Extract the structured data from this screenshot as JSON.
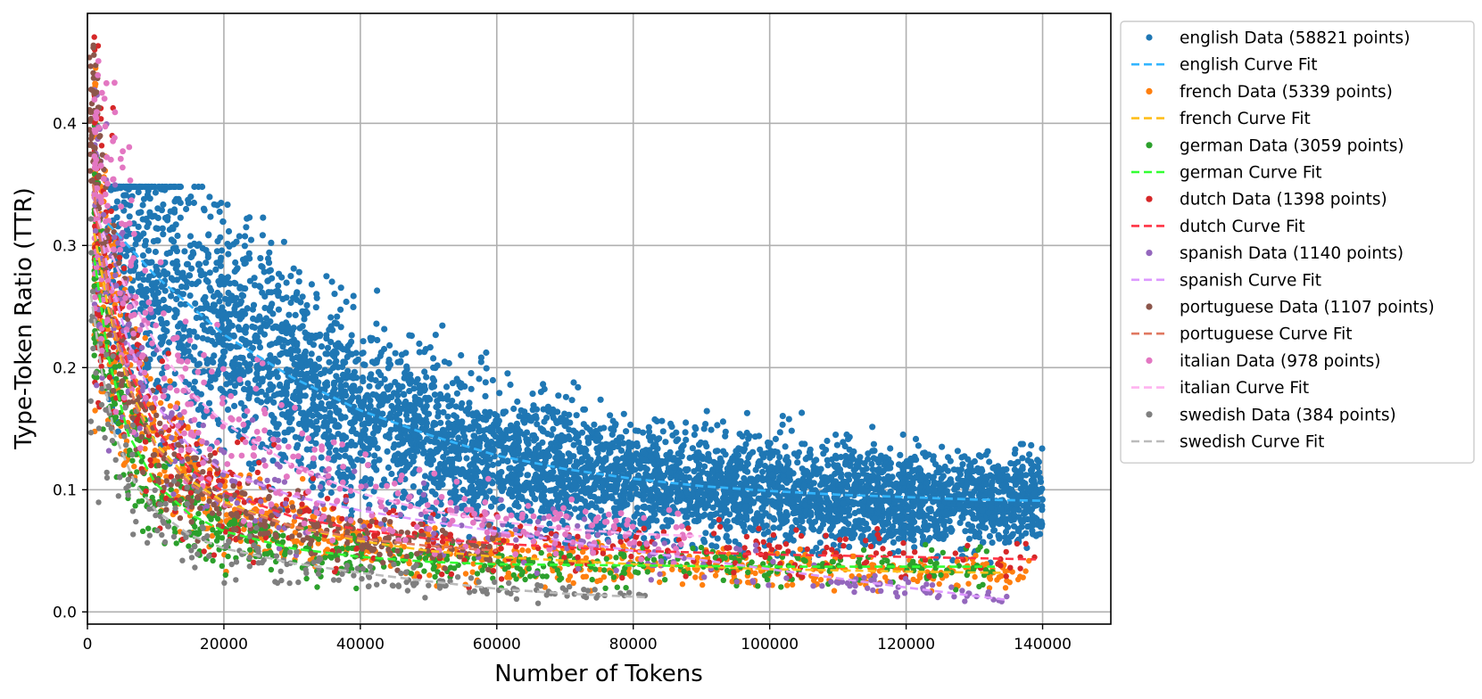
{
  "chart_data": {
    "type": "scatter",
    "title": "",
    "xlabel": "Number of Tokens",
    "ylabel": "Type-Token Ratio (TTR)",
    "xlim": [
      0,
      150000
    ],
    "ylim": [
      -0.01,
      0.49
    ],
    "x_ticks": [
      0,
      20000,
      40000,
      60000,
      80000,
      100000,
      120000,
      140000
    ],
    "y_ticks": [
      0.0,
      0.1,
      0.2,
      0.3,
      0.4
    ],
    "grid": true,
    "legend_position": "outside-right",
    "series": [
      {
        "name": "english Data (58821 points)",
        "fit_name": "english Curve Fit",
        "color": "#1f77b4",
        "fit_color": "#33b5ff",
        "x_range": [
          3000,
          140000
        ],
        "fit": [
          [
            3000,
            0.318
          ],
          [
            10000,
            0.275
          ],
          [
            20000,
            0.227
          ],
          [
            30000,
            0.192
          ],
          [
            40000,
            0.165
          ],
          [
            50000,
            0.145
          ],
          [
            60000,
            0.128
          ],
          [
            70000,
            0.117
          ],
          [
            80000,
            0.109
          ],
          [
            90000,
            0.103
          ],
          [
            100000,
            0.099
          ],
          [
            110000,
            0.096
          ],
          [
            120000,
            0.094
          ],
          [
            130000,
            0.092
          ],
          [
            140000,
            0.091
          ]
        ]
      },
      {
        "name": "french Data (5339 points)",
        "fit_name": "french Curve Fit",
        "color": "#ff7f0e",
        "fit_color": "#ffbf1a",
        "x_range": [
          1000,
          138000
        ],
        "fit": [
          [
            1000,
            0.31
          ],
          [
            3000,
            0.25
          ],
          [
            6000,
            0.185
          ],
          [
            10000,
            0.138
          ],
          [
            15000,
            0.108
          ],
          [
            20000,
            0.09
          ],
          [
            30000,
            0.07
          ],
          [
            40000,
            0.058
          ],
          [
            50000,
            0.05
          ],
          [
            60000,
            0.045
          ],
          [
            80000,
            0.039
          ],
          [
            100000,
            0.035
          ],
          [
            120000,
            0.033
          ],
          [
            134000,
            0.032
          ]
        ]
      },
      {
        "name": "german Data (3059 points)",
        "fit_name": "german Curve Fit",
        "color": "#2ca02c",
        "fit_color": "#33ff33",
        "x_range": [
          1000,
          133000
        ],
        "fit": [
          [
            1000,
            0.29
          ],
          [
            3000,
            0.21
          ],
          [
            6000,
            0.145
          ],
          [
            10000,
            0.105
          ],
          [
            15000,
            0.08
          ],
          [
            20000,
            0.066
          ],
          [
            30000,
            0.052
          ],
          [
            40000,
            0.045
          ],
          [
            50000,
            0.041
          ],
          [
            60000,
            0.039
          ],
          [
            80000,
            0.038
          ],
          [
            100000,
            0.037
          ],
          [
            120000,
            0.037
          ],
          [
            133000,
            0.037
          ]
        ]
      },
      {
        "name": "dutch Data (1398 points)",
        "fit_name": "dutch Curve Fit",
        "color": "#d62728",
        "fit_color": "#ff3344",
        "x_range": [
          1000,
          139000
        ],
        "fit": [
          [
            1000,
            0.33
          ],
          [
            3000,
            0.27
          ],
          [
            6000,
            0.2
          ],
          [
            10000,
            0.15
          ],
          [
            15000,
            0.117
          ],
          [
            20000,
            0.098
          ],
          [
            30000,
            0.078
          ],
          [
            40000,
            0.067
          ],
          [
            50000,
            0.06
          ],
          [
            60000,
            0.056
          ],
          [
            80000,
            0.05
          ],
          [
            100000,
            0.047
          ],
          [
            120000,
            0.045
          ],
          [
            139000,
            0.043
          ]
        ]
      },
      {
        "name": "spanish Data (1140 points)",
        "fit_name": "spanish Curve Fit",
        "color": "#9467bd",
        "fit_color": "#dd99ff",
        "x_range": [
          1000,
          135000
        ],
        "fit": [
          [
            1000,
            0.34
          ],
          [
            3000,
            0.28
          ],
          [
            6000,
            0.22
          ],
          [
            10000,
            0.17
          ],
          [
            15000,
            0.135
          ],
          [
            20000,
            0.115
          ],
          [
            30000,
            0.095
          ],
          [
            40000,
            0.083
          ],
          [
            50000,
            0.074
          ],
          [
            60000,
            0.066
          ],
          [
            80000,
            0.05
          ],
          [
            100000,
            0.035
          ],
          [
            120000,
            0.02
          ],
          [
            134500,
            0.01
          ]
        ]
      },
      {
        "name": "portuguese Data (1107 points)",
        "fit_name": "portuguese Curve Fit",
        "color": "#8c564b",
        "fit_color": "#e07860",
        "x_range": [
          300,
          60000
        ],
        "fit": [
          [
            800,
            0.35
          ],
          [
            2000,
            0.3
          ],
          [
            4000,
            0.23
          ],
          [
            7000,
            0.17
          ],
          [
            10000,
            0.135
          ],
          [
            15000,
            0.105
          ],
          [
            20000,
            0.088
          ],
          [
            30000,
            0.07
          ],
          [
            40000,
            0.06
          ],
          [
            50000,
            0.054
          ],
          [
            60000,
            0.05
          ]
        ]
      },
      {
        "name": "italian Data (978 points)",
        "fit_name": "italian Curve Fit",
        "color": "#e377c2",
        "fit_color": "#ffb3f0",
        "x_range": [
          1000,
          90000
        ],
        "fit": [
          [
            1000,
            0.33
          ],
          [
            3000,
            0.3
          ],
          [
            6000,
            0.26
          ],
          [
            10000,
            0.22
          ],
          [
            15000,
            0.18
          ],
          [
            20000,
            0.155
          ],
          [
            30000,
            0.12
          ],
          [
            40000,
            0.097
          ],
          [
            50000,
            0.083
          ],
          [
            60000,
            0.074
          ],
          [
            70000,
            0.068
          ],
          [
            80000,
            0.064
          ],
          [
            90000,
            0.062
          ]
        ]
      },
      {
        "name": "swedish Data (384 points)",
        "fit_name": "swedish Curve Fit",
        "color": "#7f7f7f",
        "fit_color": "#bbbbbb",
        "x_range": [
          500,
          82000
        ],
        "fit": [
          [
            500,
            0.26
          ],
          [
            2000,
            0.2
          ],
          [
            4000,
            0.145
          ],
          [
            7000,
            0.105
          ],
          [
            10000,
            0.083
          ],
          [
            15000,
            0.063
          ],
          [
            20000,
            0.052
          ],
          [
            30000,
            0.04
          ],
          [
            40000,
            0.032
          ],
          [
            50000,
            0.025
          ],
          [
            60000,
            0.019
          ],
          [
            70000,
            0.015
          ],
          [
            82000,
            0.012
          ]
        ]
      }
    ]
  }
}
